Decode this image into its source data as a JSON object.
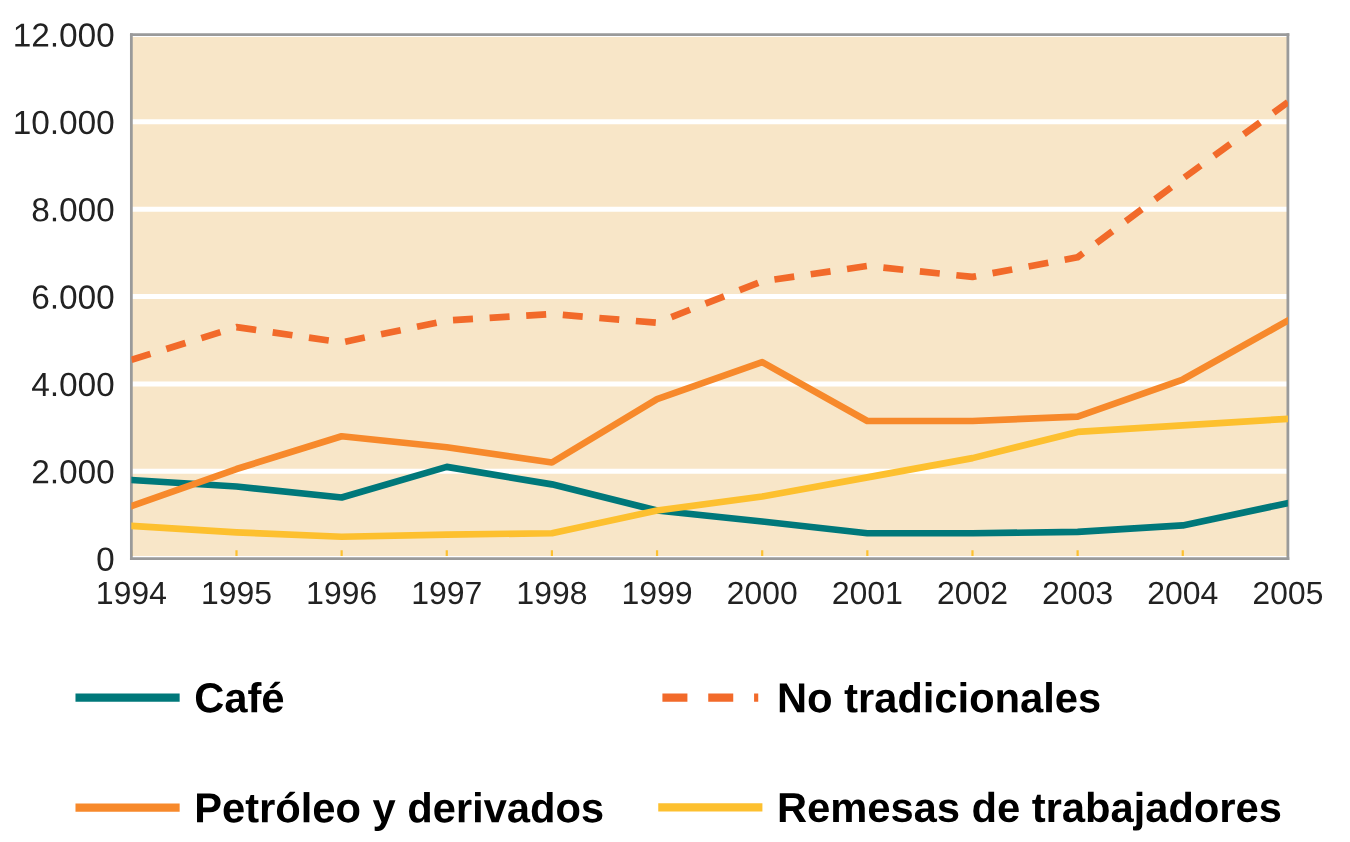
{
  "chart_data": {
    "type": "line",
    "categories": [
      "1994",
      "1995",
      "1996",
      "1997",
      "1998",
      "1999",
      "2000",
      "2001",
      "2002",
      "2003",
      "2004",
      "2005"
    ],
    "series": [
      {
        "name": "Café",
        "color": "#00787a",
        "line_style": "solid",
        "values": [
          1800,
          1650,
          1400,
          2100,
          1700,
          1100,
          850,
          580,
          580,
          610,
          760,
          1270
        ]
      },
      {
        "name": "Petróleo y derivados",
        "color": "#f7892b",
        "line_style": "solid",
        "values": [
          1200,
          2050,
          2800,
          2550,
          2200,
          3650,
          4500,
          3150,
          3150,
          3250,
          4100,
          5450
        ]
      },
      {
        "name": "No tradicionales",
        "color": "#f26a2a",
        "line_style": "dashed",
        "values": [
          4550,
          5300,
          4950,
          5450,
          5600,
          5400,
          6350,
          6700,
          6450,
          6900,
          8700,
          10450
        ]
      },
      {
        "name": "Remesas de trabajadores",
        "color": "#fdc02f",
        "line_style": "solid",
        "values": [
          750,
          600,
          500,
          550,
          580,
          1100,
          1420,
          1860,
          2300,
          2900,
          3050,
          3200
        ]
      }
    ],
    "ylim": [
      0,
      12000
    ],
    "yticks": [
      0,
      {
        "value": 2000,
        "label": "2.000"
      },
      {
        "value": 4000,
        "label": "4.000"
      },
      {
        "value": 6000,
        "label": "6.000"
      },
      {
        "value": 8000,
        "label": "8.000"
      },
      {
        "value": 10000,
        "label": "10.000"
      },
      {
        "value": 12000,
        "label": "12.000"
      }
    ],
    "grid": "y",
    "legend": "bottom",
    "marker": "none"
  }
}
